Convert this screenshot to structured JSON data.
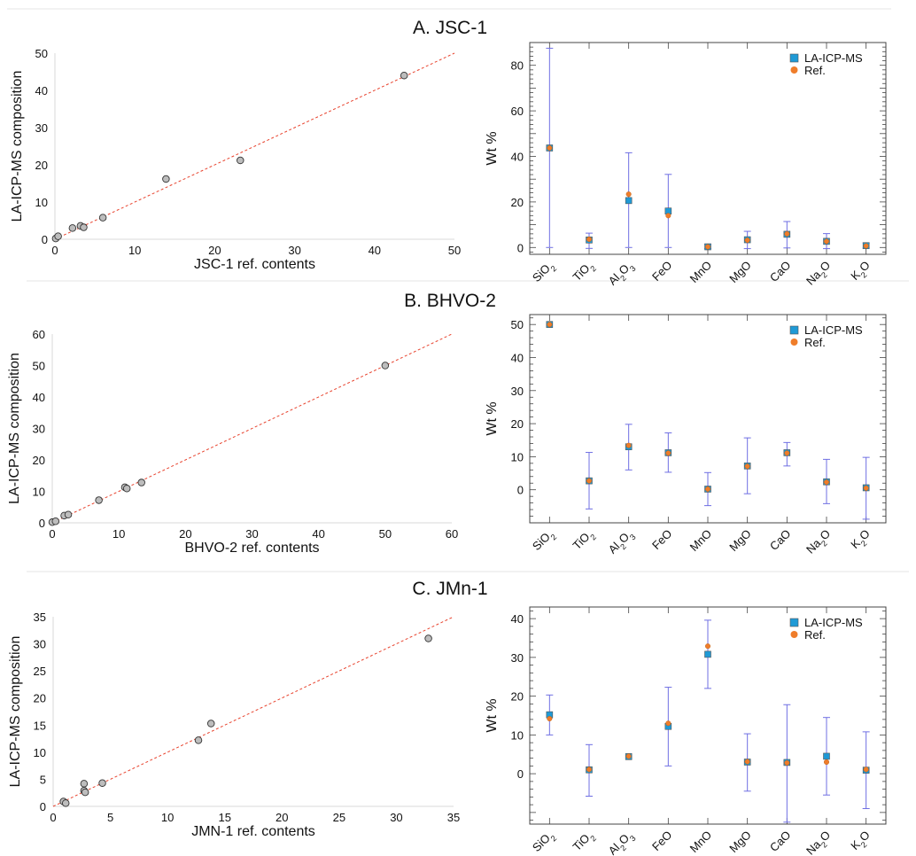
{
  "panels": [
    {
      "title": "A. JSC-1",
      "chart_data": [
        {
          "type": "scatter",
          "xlabel": "JSC-1 ref. contents",
          "ylabel": "LA-ICP-MS composition",
          "xlim": [
            0,
            50
          ],
          "ylim": [
            0,
            50
          ],
          "xticks": [
            0,
            10,
            20,
            30,
            40,
            50
          ],
          "yticks": [
            0,
            10,
            20,
            30,
            40,
            50
          ],
          "fit_line": [
            [
              0,
              0
            ],
            [
              50,
              50
            ]
          ],
          "points": [
            [
              0.1,
              0.2
            ],
            [
              0.4,
              0.8
            ],
            [
              2.2,
              3.0
            ],
            [
              3.2,
              3.6
            ],
            [
              3.6,
              3.2
            ],
            [
              6.0,
              5.8
            ],
            [
              13.9,
              16.2
            ],
            [
              23.2,
              21.2
            ],
            [
              43.7,
              44.0
            ]
          ]
        },
        {
          "type": "scatter",
          "ylabel": "Wt %",
          "ylim": [
            -3,
            90
          ],
          "yticks": [
            0,
            20,
            40,
            60,
            80
          ],
          "categories": [
            "SiO2",
            "TiO2",
            "Al2O3",
            "FeO",
            "MnO",
            "MgO",
            "CaO",
            "Na2O",
            "K2O"
          ],
          "series": [
            {
              "name": "LA-ICP-MS",
              "values": [
                43.7,
                3.3,
                20.6,
                16.0,
                0.3,
                3.4,
                5.8,
                2.7,
                0.8
              ],
              "error_bars": [
                [
                  0,
                  87.5
                ],
                [
                  -0.4,
                  6.3
                ],
                [
                  0,
                  41.6
                ],
                [
                  0,
                  32.1
                ],
                [
                  -0.5,
                  1.4
                ],
                [
                  -0.5,
                  7.1
                ],
                [
                  -0.2,
                  11.4
                ],
                [
                  -0.5,
                  6.1
                ],
                [
                  -0.3,
                  2.0
                ]
              ]
            },
            {
              "name": "Ref.",
              "values": [
                43.7,
                3.6,
                23.4,
                14.0,
                0.3,
                3.2,
                6.0,
                2.7,
                0.7
              ]
            }
          ],
          "legend": "top-right",
          "colors": {
            "LA-ICP-MS": "#1f9ad6",
            "Ref.": "#ef7d2a",
            "error_bars": "#6f6fe3"
          }
        }
      ]
    },
    {
      "title": "B. BHVO-2",
      "chart_data": [
        {
          "type": "scatter",
          "xlabel": "BHVO-2 ref. contents",
          "ylabel": "LA-ICP-MS composition",
          "xlim": [
            0,
            60
          ],
          "ylim": [
            0,
            60
          ],
          "xticks": [
            0,
            10,
            20,
            30,
            40,
            50,
            60
          ],
          "yticks": [
            0,
            10,
            20,
            30,
            40,
            50,
            60
          ],
          "fit_line": [
            [
              0,
              0
            ],
            [
              60,
              60
            ]
          ],
          "points": [
            [
              0.0,
              0.2
            ],
            [
              0.5,
              0.5
            ],
            [
              1.8,
              2.3
            ],
            [
              2.4,
              2.6
            ],
            [
              7.0,
              7.2
            ],
            [
              10.9,
              11.3
            ],
            [
              11.2,
              10.9
            ],
            [
              13.4,
              12.8
            ],
            [
              50.0,
              50.0
            ]
          ]
        },
        {
          "type": "scatter",
          "ylabel": "Wt %",
          "ylim": [
            -10,
            53
          ],
          "yticks": [
            0,
            10,
            20,
            30,
            40,
            50
          ],
          "categories": [
            "SiO2",
            "TiO2",
            "Al2O3",
            "FeO",
            "MnO",
            "MgO",
            "CaO",
            "Na2O",
            "K2O"
          ],
          "series": [
            {
              "name": "LA-ICP-MS",
              "values": [
                50.0,
                2.7,
                13.0,
                11.2,
                0.2,
                7.2,
                11.2,
                2.4,
                0.6
              ],
              "error_bars": [
                [
                  50.0,
                  50.0
                ],
                [
                  -5.8,
                  11.3
                ],
                [
                  6.0,
                  19.8
                ],
                [
                  5.3,
                  17.2
                ],
                [
                  -4.8,
                  5.2
                ],
                [
                  -1.2,
                  15.7
                ],
                [
                  7.2,
                  14.3
                ],
                [
                  -4.2,
                  9.2
                ],
                [
                  -8.9,
                  9.8
                ]
              ]
            },
            {
              "name": "Ref.",
              "values": [
                50.0,
                2.7,
                13.4,
                11.1,
                0.2,
                7.1,
                11.1,
                2.3,
                0.5
              ]
            }
          ],
          "legend": "top-right",
          "colors": {
            "LA-ICP-MS": "#1f9ad6",
            "Ref.": "#ef7d2a",
            "error_bars": "#6f6fe3"
          }
        }
      ]
    },
    {
      "title": "C. JMn-1",
      "chart_data": [
        {
          "type": "scatter",
          "xlabel": "JMN-1 ref. contents",
          "ylabel": "LA-ICP-MS composition",
          "xlim": [
            0,
            35
          ],
          "ylim": [
            0,
            35
          ],
          "xticks": [
            0,
            5,
            10,
            15,
            20,
            25,
            30,
            35
          ],
          "yticks": [
            0,
            5,
            10,
            15,
            20,
            25,
            30,
            35
          ],
          "fit_line": [
            [
              0,
              0
            ],
            [
              35,
              35
            ]
          ],
          "points": [
            [
              0.9,
              0.9
            ],
            [
              1.1,
              0.6
            ],
            [
              2.7,
              4.2
            ],
            [
              2.7,
              2.9
            ],
            [
              2.8,
              2.6
            ],
            [
              4.3,
              4.3
            ],
            [
              12.7,
              12.2
            ],
            [
              13.8,
              15.3
            ],
            [
              32.8,
              31.0
            ]
          ]
        },
        {
          "type": "scatter",
          "ylabel": "Wt %",
          "ylim": [
            -13,
            43
          ],
          "yticks": [
            0,
            10,
            20,
            30,
            40
          ],
          "categories": [
            "SiO2",
            "TiO2",
            "Al2O3",
            "FeO",
            "MnO",
            "MgO",
            "CaO",
            "Na2O",
            "K2O"
          ],
          "series": [
            {
              "name": "LA-ICP-MS",
              "values": [
                15.2,
                1.0,
                4.4,
                12.2,
                30.8,
                3.0,
                2.9,
                4.5,
                0.9
              ],
              "error_bars": [
                [
                  10.0,
                  20.3
                ],
                [
                  -5.8,
                  7.5
                ],
                [
                  4.4,
                  4.4
                ],
                [
                  2.0,
                  22.3
                ],
                [
                  22.0,
                  39.6
                ],
                [
                  -4.5,
                  10.3
                ],
                [
                  -12.5,
                  17.8
                ],
                [
                  -5.5,
                  14.5
                ],
                [
                  -9.0,
                  10.8
                ]
              ]
            },
            {
              "name": "Ref.",
              "values": [
                14.2,
                1.1,
                4.5,
                13.0,
                32.9,
                3.1,
                2.8,
                3.0,
                1.1
              ]
            }
          ],
          "legend": "top-right",
          "colors": {
            "LA-ICP-MS": "#1f9ad6",
            "Ref.": "#ef7d2a",
            "error_bars": "#6f6fe3"
          }
        }
      ]
    }
  ]
}
